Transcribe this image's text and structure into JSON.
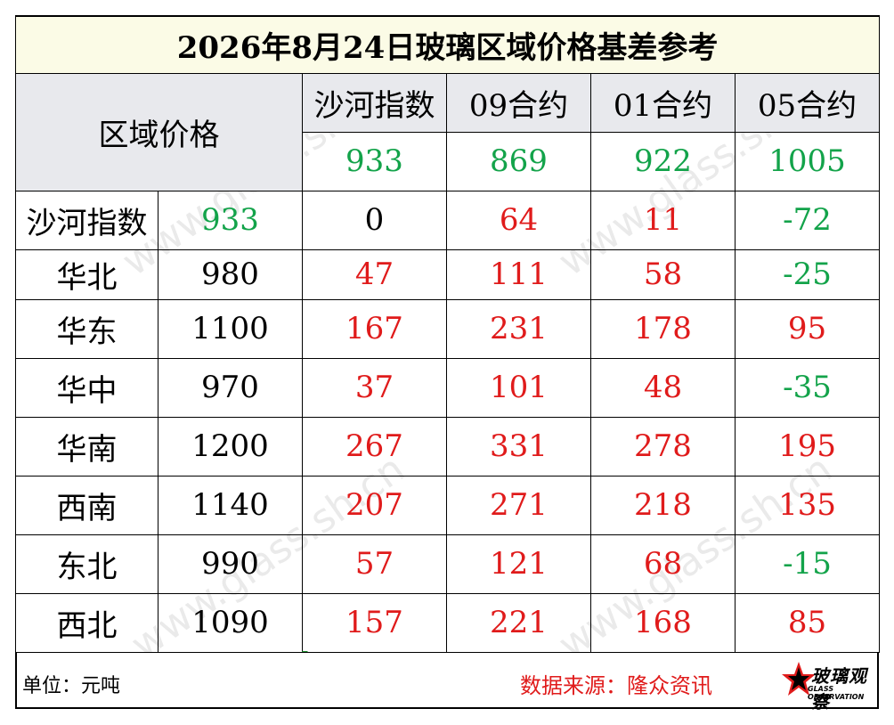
{
  "title": "2026年8月24日玻璃区域价格基差参考",
  "header": {
    "region_label": "区域价格",
    "columns": [
      "沙河指数",
      "09合约",
      "01合约",
      "05合约"
    ],
    "column_values": [
      "933",
      "869",
      "922",
      "1005"
    ]
  },
  "rows": [
    {
      "region": "沙河指数",
      "price": "933",
      "diffs": [
        "0",
        "64",
        "11",
        "-72"
      ]
    },
    {
      "region": "华北",
      "price": "980",
      "diffs": [
        "47",
        "111",
        "58",
        "-25"
      ]
    },
    {
      "region": "华东",
      "price": "1100",
      "diffs": [
        "167",
        "231",
        "178",
        "95"
      ]
    },
    {
      "region": "华中",
      "price": "970",
      "diffs": [
        "37",
        "101",
        "48",
        "-35"
      ]
    },
    {
      "region": "华南",
      "price": "1200",
      "diffs": [
        "267",
        "331",
        "278",
        "195"
      ]
    },
    {
      "region": "西南",
      "price": "1140",
      "diffs": [
        "207",
        "271",
        "218",
        "135"
      ]
    },
    {
      "region": "东北",
      "price": "990",
      "diffs": [
        "57",
        "121",
        "68",
        "-15"
      ]
    },
    {
      "region": "西北",
      "price": "1090",
      "diffs": [
        "157",
        "221",
        "168",
        "85"
      ]
    }
  ],
  "footer": {
    "unit": "单位：元吨",
    "source": "数据来源：隆众资讯",
    "logo_text": "玻璃观察",
    "logo_sub": "GLASS OBSERVATION"
  },
  "watermark": "www.glass.sh.cn",
  "colors": {
    "positive": "#e01b1b",
    "negative": "#13a34a",
    "title_bg": "#fbfbe6",
    "header_bg": "#e8e9ed"
  }
}
